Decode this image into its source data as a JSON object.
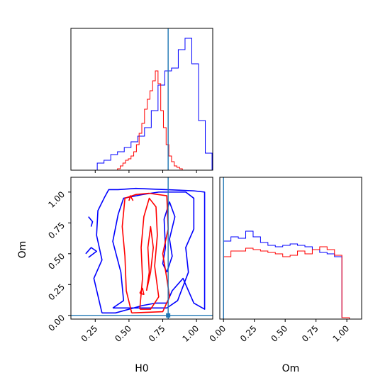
{
  "chart_data": {
    "type": "corner",
    "colors": {
      "series_a": "#0000ff",
      "series_b": "#ff0000",
      "truth": "#1f77b4"
    },
    "truth": {
      "H0": 0.79,
      "Om": 0.0
    },
    "variables": [
      {
        "name": "H0",
        "label": "H0",
        "range": [
          0.07,
          1.12
        ],
        "ticks": [
          "0.25",
          "0.50",
          "0.75",
          "1.00"
        ],
        "tick_values": [
          0.25,
          0.5,
          0.75,
          1.0
        ]
      },
      {
        "name": "Om",
        "label": "Om",
        "range": [
          -0.03,
          1.12
        ],
        "ticks": [
          "0.00",
          "0.25",
          "0.50",
          "0.75",
          "1.00"
        ],
        "tick_values": [
          0.0,
          0.25,
          0.5,
          0.75,
          1.0
        ]
      }
    ],
    "hist_H0": {
      "blue": {
        "x": [
          0.29,
          0.34,
          0.39,
          0.44,
          0.49,
          0.54,
          0.59,
          0.64,
          0.69,
          0.74,
          0.79,
          0.84,
          0.89,
          0.94,
          0.99,
          1.04,
          1.09
        ],
        "y": [
          0.05,
          0.07,
          0.11,
          0.13,
          0.16,
          0.2,
          0.24,
          0.3,
          0.42,
          0.6,
          0.7,
          0.72,
          0.85,
          0.93,
          0.75,
          0.35,
          0.12
        ]
      },
      "red": {
        "x": [
          0.425,
          0.445,
          0.465,
          0.485,
          0.505,
          0.525,
          0.545,
          0.565,
          0.585,
          0.605,
          0.625,
          0.645,
          0.665,
          0.685,
          0.705,
          0.725,
          0.745,
          0.765,
          0.785,
          0.805,
          0.825,
          0.845,
          0.865,
          0.885
        ],
        "y": [
          0.01,
          0.03,
          0.05,
          0.07,
          0.08,
          0.1,
          0.13,
          0.18,
          0.26,
          0.33,
          0.43,
          0.5,
          0.56,
          0.63,
          0.7,
          0.61,
          0.42,
          0.3,
          0.18,
          0.1,
          0.06,
          0.03,
          0.02,
          0.01
        ]
      }
    },
    "hist_Om": {
      "blue": {
        "x": [
          0.03,
          0.09,
          0.15,
          0.21,
          0.27,
          0.33,
          0.39,
          0.45,
          0.51,
          0.57,
          0.63,
          0.69,
          0.75,
          0.81,
          0.87,
          0.93,
          0.99
        ],
        "y": [
          0.55,
          0.58,
          0.57,
          0.62,
          0.58,
          0.54,
          0.52,
          0.51,
          0.52,
          0.53,
          0.52,
          0.51,
          0.49,
          0.47,
          0.46,
          0.44,
          0.01
        ]
      },
      "red": {
        "x": [
          0.03,
          0.09,
          0.15,
          0.21,
          0.27,
          0.33,
          0.39,
          0.45,
          0.51,
          0.57,
          0.63,
          0.69,
          0.75,
          0.81,
          0.87,
          0.93,
          0.99
        ],
        "y": [
          0.44,
          0.48,
          0.48,
          0.5,
          0.49,
          0.48,
          0.47,
          0.46,
          0.44,
          0.45,
          0.48,
          0.46,
          0.49,
          0.51,
          0.49,
          0.45,
          0.01
        ]
      }
    },
    "contours": {
      "blue": [
        [
          [
            0.3,
            0.02
          ],
          [
            0.4,
            0.02
          ],
          [
            0.6,
            0.08
          ],
          [
            0.7,
            0.1
          ],
          [
            0.78,
            0.1
          ],
          [
            0.82,
            0.2
          ],
          [
            0.9,
            0.3
          ],
          [
            0.98,
            0.1
          ],
          [
            1.06,
            0.05
          ],
          [
            1.06,
            1.0
          ],
          [
            0.98,
            1.01
          ],
          [
            0.55,
            1.03
          ],
          [
            0.42,
            1.02
          ],
          [
            0.35,
            1.02
          ],
          [
            0.32,
            0.96
          ],
          [
            0.27,
            0.85
          ],
          [
            0.26,
            0.65
          ],
          [
            0.3,
            0.45
          ],
          [
            0.24,
            0.3
          ],
          [
            0.3,
            0.02
          ]
        ],
        [
          [
            0.38,
            0.06
          ],
          [
            0.46,
            0.12
          ],
          [
            0.44,
            0.35
          ],
          [
            0.38,
            0.6
          ],
          [
            0.42,
            0.82
          ],
          [
            0.46,
            0.95
          ],
          [
            0.6,
            0.98
          ],
          [
            0.72,
            1.0
          ],
          [
            0.92,
            1.0
          ],
          [
            0.98,
            0.95
          ],
          [
            0.98,
            0.7
          ],
          [
            0.92,
            0.55
          ],
          [
            0.94,
            0.35
          ],
          [
            0.86,
            0.12
          ],
          [
            0.78,
            0.06
          ],
          [
            0.38,
            0.06
          ]
        ],
        [
          [
            0.78,
            0.35
          ],
          [
            0.82,
            0.48
          ],
          [
            0.8,
            0.62
          ],
          [
            0.84,
            0.8
          ],
          [
            0.8,
            0.92
          ],
          [
            0.76,
            0.78
          ],
          [
            0.77,
            0.55
          ],
          [
            0.75,
            0.42
          ],
          [
            0.78,
            0.35
          ]
        ],
        [
          [
            0.2,
            0.8
          ],
          [
            0.23,
            0.76
          ],
          [
            0.22,
            0.72
          ]
        ],
        [
          [
            0.18,
            0.5
          ],
          [
            0.22,
            0.55
          ],
          [
            0.26,
            0.52
          ],
          [
            0.2,
            0.47
          ]
        ]
      ],
      "red": [
        [
          [
            0.52,
            0.02
          ],
          [
            0.48,
            0.2
          ],
          [
            0.47,
            0.48
          ],
          [
            0.45,
            0.72
          ],
          [
            0.47,
            0.95
          ],
          [
            0.55,
            0.98
          ],
          [
            0.65,
            0.99
          ],
          [
            0.78,
            0.97
          ],
          [
            0.79,
            0.7
          ],
          [
            0.75,
            0.5
          ],
          [
            0.78,
            0.3
          ],
          [
            0.8,
            0.15
          ],
          [
            0.75,
            0.03
          ],
          [
            0.52,
            0.02
          ]
        ],
        [
          [
            0.58,
            0.05
          ],
          [
            0.6,
            0.3
          ],
          [
            0.59,
            0.55
          ],
          [
            0.61,
            0.8
          ],
          [
            0.65,
            0.95
          ],
          [
            0.7,
            0.88
          ],
          [
            0.71,
            0.65
          ],
          [
            0.69,
            0.4
          ],
          [
            0.72,
            0.15
          ],
          [
            0.66,
            0.05
          ],
          [
            0.58,
            0.05
          ]
        ],
        [
          [
            0.63,
            0.2
          ],
          [
            0.65,
            0.35
          ],
          [
            0.64,
            0.55
          ],
          [
            0.66,
            0.72
          ],
          [
            0.68,
            0.55
          ],
          [
            0.66,
            0.35
          ],
          [
            0.63,
            0.2
          ]
        ],
        [
          [
            0.5,
            0.93
          ],
          [
            0.51,
            0.97
          ],
          [
            0.53,
            0.93
          ]
        ],
        [
          [
            0.58,
            0.18
          ],
          [
            0.6,
            0.22
          ],
          [
            0.61,
            0.17
          ],
          [
            0.58,
            0.18
          ]
        ]
      ]
    }
  }
}
